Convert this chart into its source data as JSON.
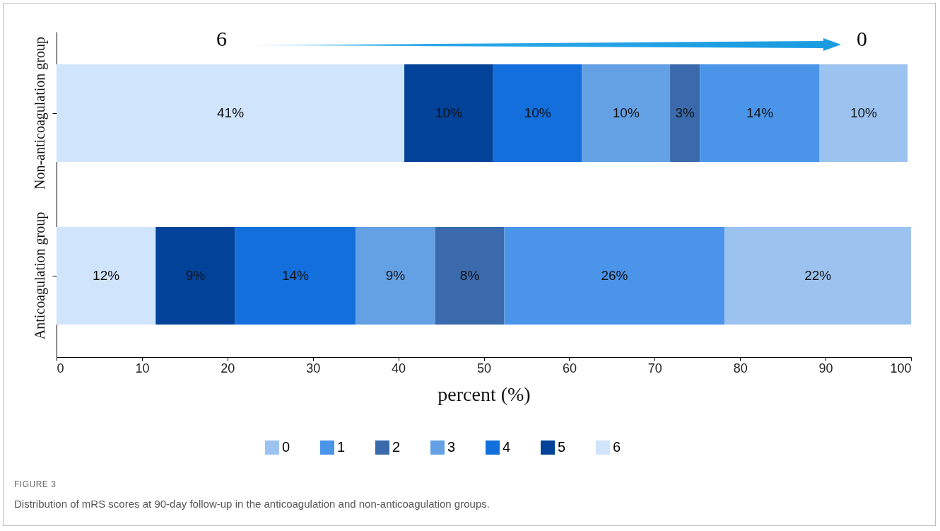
{
  "chart_data": {
    "type": "bar",
    "orientation": "horizontal",
    "stacked": true,
    "xlabel": "percent (%)",
    "categories": [
      "Non-anticoagulation group",
      "Anticoagulation group"
    ],
    "series": [
      {
        "name": "6",
        "color": "#d0e4fb",
        "values": [
          40.7,
          11.6
        ],
        "value_labels": [
          "41%",
          "12%"
        ]
      },
      {
        "name": "5",
        "color": "#024399",
        "values": [
          10.4,
          9.3
        ],
        "value_labels": [
          "10%",
          "9%"
        ]
      },
      {
        "name": "4",
        "color": "#136fdc",
        "values": [
          10.4,
          14.1
        ],
        "value_labels": [
          "10%",
          "14%"
        ]
      },
      {
        "name": "3",
        "color": "#64a0e4",
        "values": [
          10.3,
          9.3
        ],
        "value_labels": [
          "10%",
          "9%"
        ]
      },
      {
        "name": "2",
        "color": "#3a6aab",
        "values": [
          3.5,
          8.1
        ],
        "value_labels": [
          "3%",
          "8%"
        ]
      },
      {
        "name": "1",
        "color": "#4a94ea",
        "values": [
          14.0,
          25.8
        ],
        "value_labels": [
          "14%",
          "26%"
        ]
      },
      {
        "name": "0",
        "color": "#9cc3f0",
        "values": [
          10.3,
          21.8
        ],
        "value_labels": [
          "10%",
          "22%"
        ]
      }
    ],
    "xlim": [
      0,
      100
    ],
    "xticks": [
      0,
      10,
      20,
      30,
      40,
      50,
      60,
      70,
      80,
      90,
      100
    ],
    "grid": false,
    "legend": "bottom",
    "annotations": [
      "6",
      "0",
      "FIGURE 3",
      "Distribution of mRS scores at 90-day follow-up in the anticoagulation and non-anticoagulation groups."
    ]
  }
}
